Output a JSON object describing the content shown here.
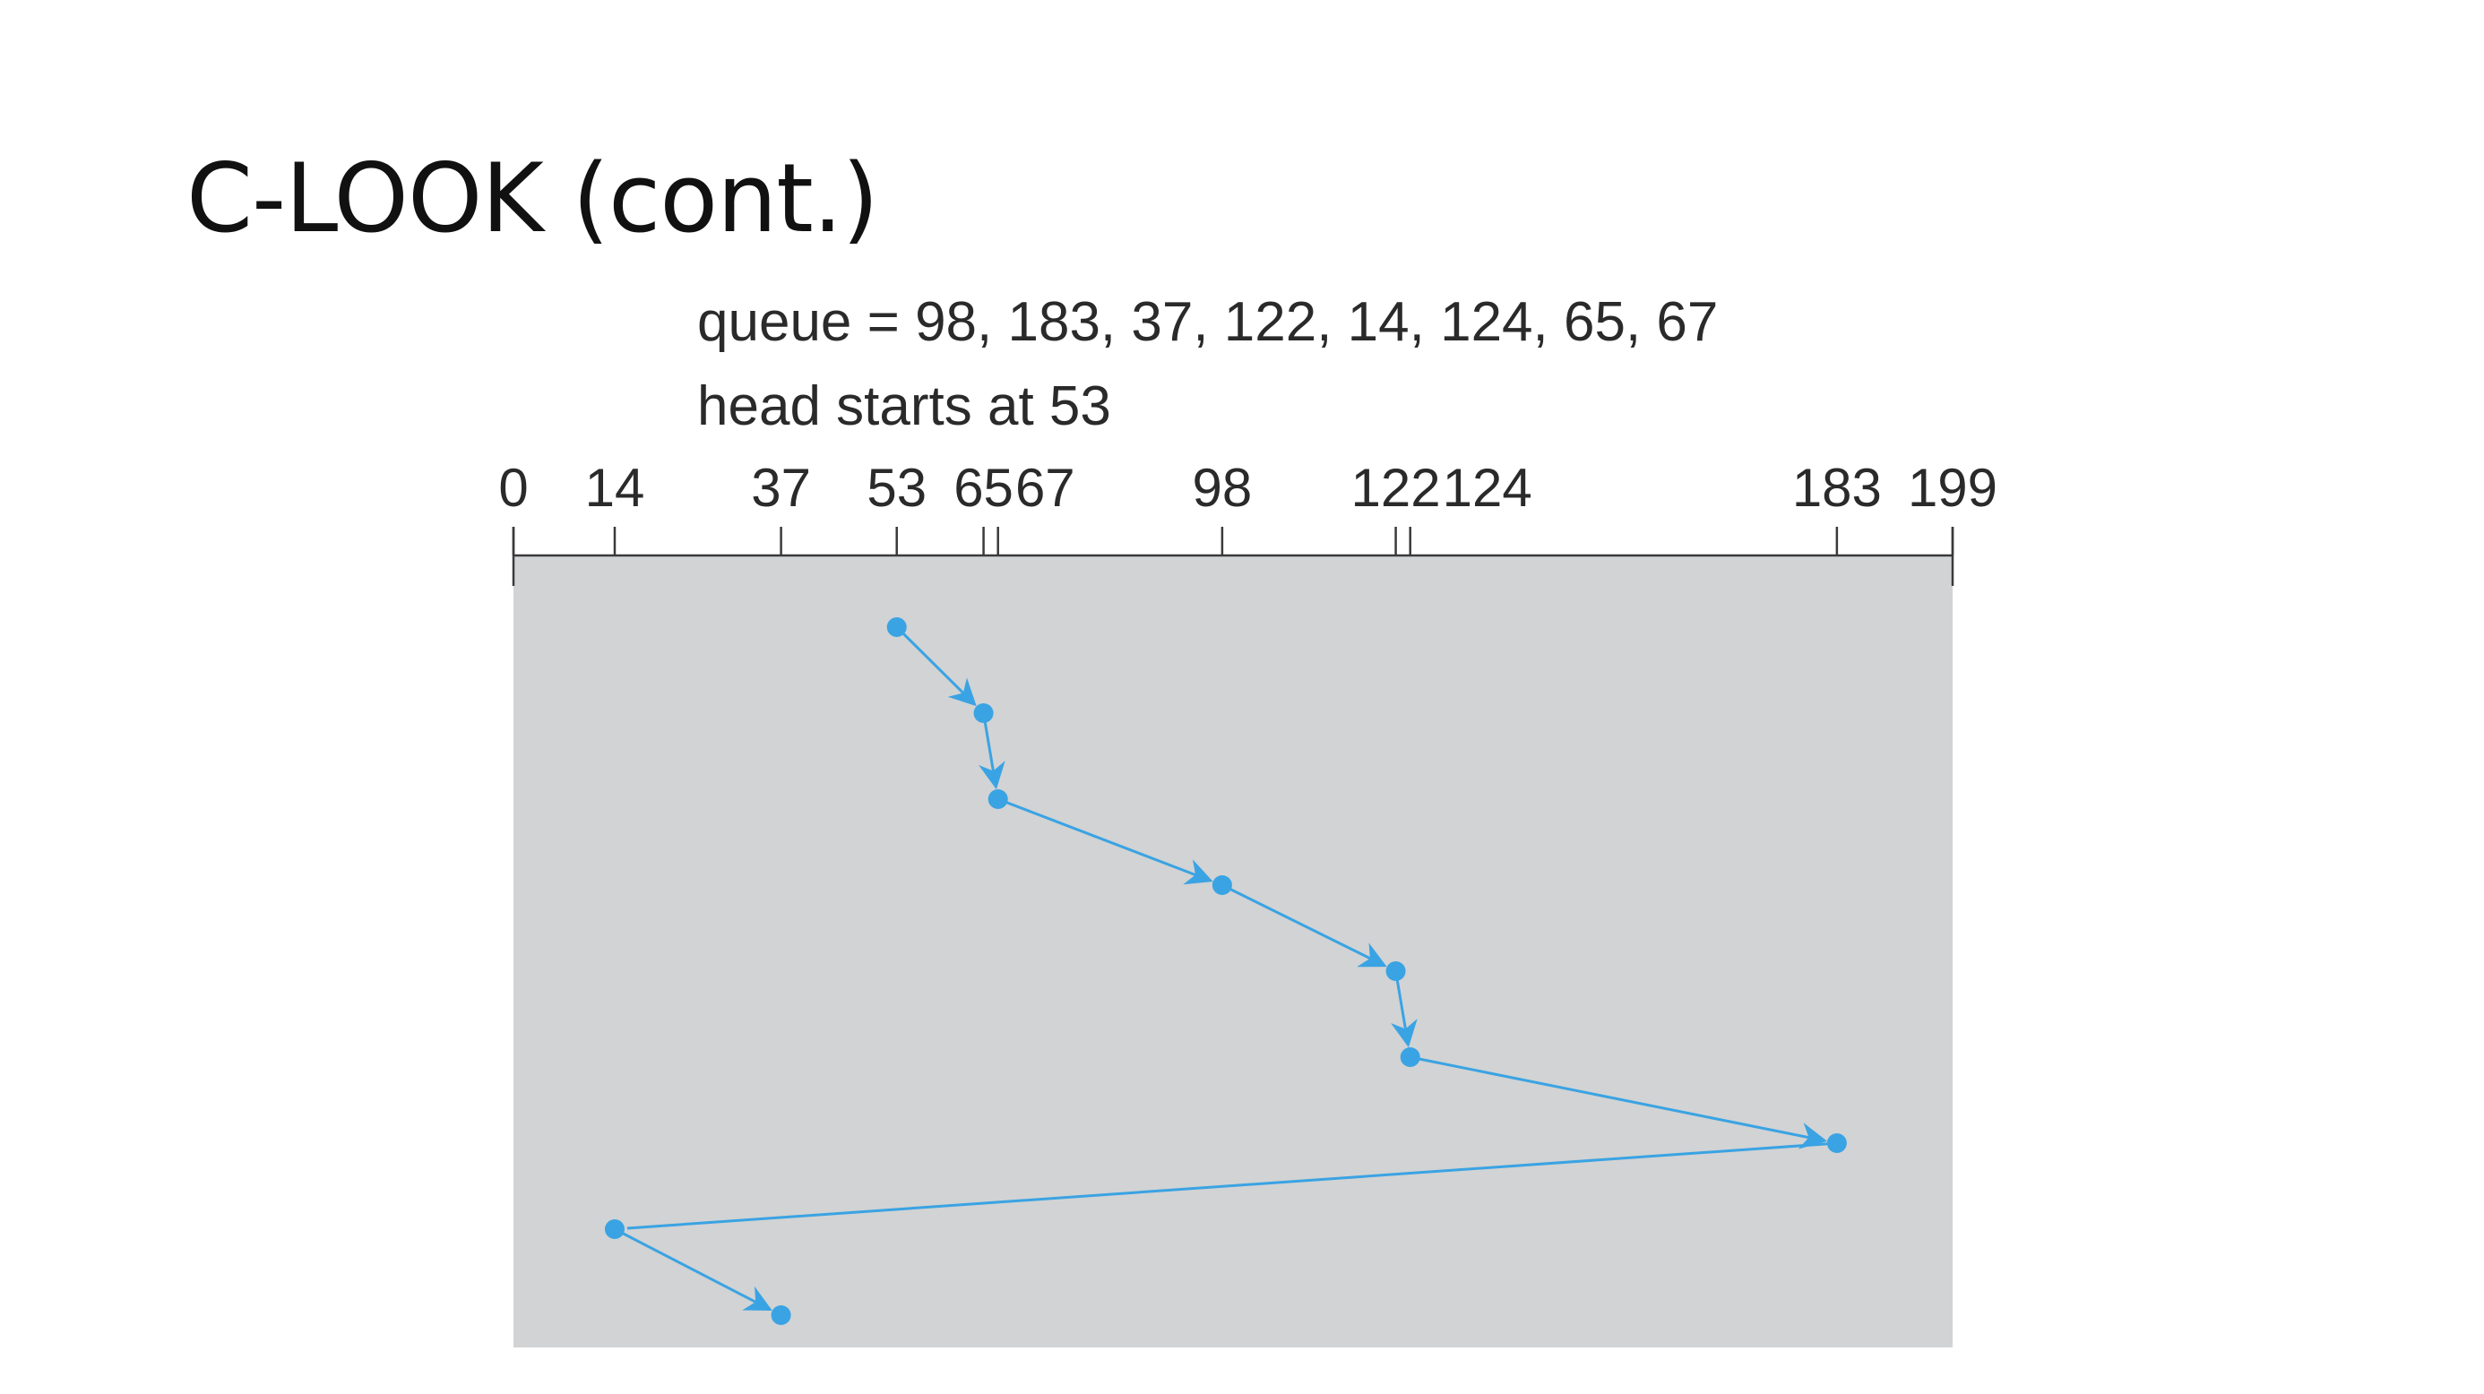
{
  "slide": {
    "title": "C-LOOK (cont.)"
  },
  "diagram": {
    "queue_caption": "queue = 98, 183, 37, 122, 14, 124, 65, 67",
    "head_caption": "head starts at 53",
    "axis_min": 0,
    "axis_max": 199,
    "tick_values": [
      0,
      14,
      37,
      53,
      65,
      67,
      98,
      122,
      124,
      183,
      199
    ],
    "tick_labels": [
      "0",
      "14",
      "37",
      "53",
      "65",
      "67",
      "98",
      "122",
      "124",
      "183",
      "199"
    ],
    "head_path": [
      53,
      65,
      67,
      98,
      122,
      124,
      183,
      14,
      37
    ],
    "arrow_segments": [
      true,
      true,
      true,
      true,
      true,
      true,
      false,
      true
    ],
    "colors": {
      "path": "#3aa3e3",
      "panel": "#d1d3d4",
      "axis": "#3a3a3a"
    }
  }
}
